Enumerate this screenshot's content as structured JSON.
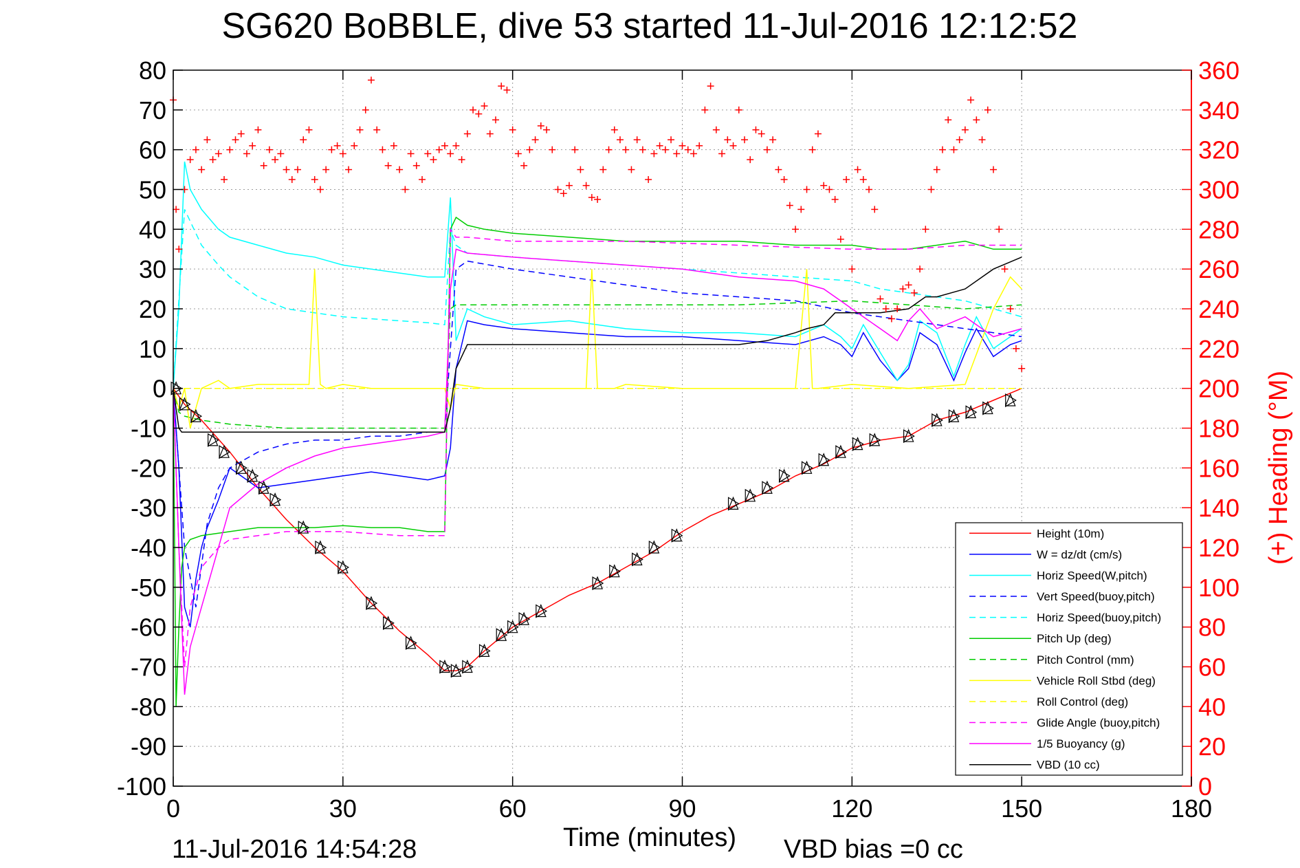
{
  "figure": {
    "title": "SG620 BoBBLE, dive 53 started 11-Jul-2016 12:12:52",
    "xlabel": "Time (minutes)",
    "footer_date": "11-Jul-2016 14:54:28",
    "footer_bias": "VBD bias =0 cc"
  },
  "chart_data": {
    "type": "line",
    "title": "SG620 BoBBLE, dive 53 started 11-Jul-2016 12:12:52",
    "xlabel": "Time (minutes)",
    "ylabel": "",
    "y2label": "(+) Heading (°M)",
    "xlim": [
      0,
      180
    ],
    "ylim": [
      -100,
      80
    ],
    "y2lim": [
      0,
      360
    ],
    "xticks": [
      "0",
      "30",
      "60",
      "90",
      "120",
      "150",
      "180"
    ],
    "yticks": [
      "80",
      "70",
      "60",
      "50",
      "40",
      "30",
      "20",
      "10",
      "0",
      "-10",
      "-20",
      "-30",
      "-40",
      "-50",
      "-60",
      "-70",
      "-80",
      "-90",
      "-100"
    ],
    "y2ticks": [
      "360",
      "340",
      "320",
      "300",
      "280",
      "260",
      "240",
      "220",
      "200",
      "180",
      "160",
      "140",
      "120",
      "100",
      "80",
      "60",
      "40",
      "20",
      "0"
    ],
    "grid": true,
    "legend_position": "bottom-right",
    "colors": {
      "red": "#ff0000",
      "blue": "#0000ff",
      "cyan": "#00ffff",
      "green": "#00cc00",
      "yellow": "#ffff00",
      "magenta": "#ff00ff",
      "black": "#000000"
    },
    "series": [
      {
        "name": "Height (10m)",
        "color": "#ff0000",
        "dash": "solid",
        "x": [
          0,
          2,
          5,
          10,
          15,
          20,
          25,
          30,
          35,
          40,
          45,
          48,
          50,
          52,
          55,
          60,
          65,
          70,
          75,
          80,
          85,
          90,
          95,
          100,
          105,
          110,
          115,
          120,
          125,
          130,
          135,
          140,
          145,
          150
        ],
        "y": [
          0,
          -4,
          -8,
          -16,
          -25,
          -33,
          -40,
          -46,
          -54,
          -61,
          -67,
          -71,
          -71,
          -70,
          -66,
          -60,
          -56,
          -52,
          -49,
          -45,
          -41,
          -36,
          -32,
          -29,
          -26,
          -22,
          -19,
          -15,
          -13,
          -12,
          -8,
          -6,
          -3,
          0
        ]
      },
      {
        "name": "W = dz/dt (cm/s)",
        "color": "#0000ff",
        "dash": "solid",
        "x": [
          0,
          1,
          2,
          3,
          4,
          5,
          6,
          8,
          10,
          12,
          15,
          20,
          25,
          30,
          35,
          40,
          45,
          48,
          49,
          50,
          52,
          55,
          60,
          70,
          80,
          90,
          100,
          110,
          115,
          118,
          120,
          122,
          125,
          128,
          130,
          132,
          135,
          138,
          140,
          142,
          145,
          148,
          150
        ],
        "y": [
          0,
          -20,
          -55,
          -60,
          -48,
          -40,
          -35,
          -28,
          -20,
          -22,
          -25,
          -24,
          -23,
          -22,
          -21,
          -22,
          -23,
          -22,
          -15,
          5,
          17,
          16,
          15,
          14,
          13,
          13,
          12,
          11,
          13,
          11,
          8,
          14,
          7,
          2,
          5,
          14,
          11,
          2,
          9,
          15,
          8,
          11,
          12
        ]
      },
      {
        "name": "Horiz Speed(W,pitch)",
        "color": "#00ffff",
        "dash": "solid",
        "x": [
          0,
          1,
          2,
          3,
          5,
          8,
          10,
          15,
          20,
          25,
          30,
          35,
          40,
          45,
          48,
          49,
          50,
          52,
          55,
          60,
          70,
          80,
          90,
          100,
          110,
          115,
          118,
          120,
          122,
          125,
          128,
          130,
          132,
          135,
          138,
          140,
          142,
          145,
          148,
          150
        ],
        "y": [
          0,
          20,
          57,
          50,
          45,
          40,
          38,
          36,
          34,
          33,
          31,
          30,
          29,
          28,
          28,
          48,
          12,
          20,
          18,
          16,
          17,
          15,
          14,
          14,
          13,
          16,
          13,
          10,
          16,
          9,
          2,
          6,
          17,
          14,
          3,
          11,
          18,
          10,
          13,
          15
        ]
      },
      {
        "name": "Vert Speed(buoy,pitch)",
        "color": "#0000ff",
        "dash": "dashed",
        "x": [
          0,
          2,
          4,
          6,
          8,
          10,
          15,
          20,
          25,
          30,
          35,
          40,
          45,
          48,
          49,
          50,
          52,
          60,
          70,
          80,
          90,
          100,
          110,
          120,
          125,
          130,
          135,
          140,
          145,
          150
        ],
        "y": [
          0,
          -40,
          -55,
          -34,
          -25,
          -20,
          -16,
          -14,
          -13,
          -13,
          -12,
          -12,
          -11,
          -11,
          10,
          30,
          32,
          30,
          28,
          26,
          24,
          23,
          22,
          19,
          18,
          17,
          16,
          15,
          14,
          13
        ]
      },
      {
        "name": "Horiz Speed(buoy,pitch)",
        "color": "#00ffff",
        "dash": "dashed",
        "x": [
          0,
          2,
          3,
          5,
          8,
          10,
          15,
          20,
          25,
          30,
          35,
          40,
          45,
          48,
          49,
          50,
          52,
          60,
          70,
          80,
          90,
          100,
          110,
          120,
          125,
          130,
          135,
          140,
          145,
          150
        ],
        "y": [
          0,
          45,
          42,
          36,
          31,
          28,
          23,
          20,
          19,
          18,
          17.5,
          17,
          16.5,
          16,
          40,
          36,
          34,
          33,
          32,
          31,
          30,
          29,
          28,
          27,
          25,
          24,
          23,
          22,
          20,
          18
        ]
      },
      {
        "name": "Pitch Up (deg)",
        "color": "#00cc00",
        "dash": "solid",
        "x": [
          0,
          0.5,
          1,
          1.5,
          2,
          3,
          5,
          10,
          15,
          20,
          25,
          30,
          35,
          40,
          45,
          48,
          49,
          50,
          52,
          55,
          60,
          70,
          80,
          90,
          100,
          110,
          120,
          125,
          130,
          135,
          140,
          145,
          150
        ],
        "y": [
          0,
          -80,
          -60,
          -45,
          -40,
          -38,
          -37,
          -36,
          -35,
          -35,
          -35,
          -34.5,
          -35,
          -35,
          -36,
          -36,
          40,
          43,
          41,
          40,
          39,
          38,
          37,
          37,
          37,
          36,
          36,
          35,
          35,
          36,
          37,
          35,
          35
        ]
      },
      {
        "name": "Pitch Control (mm)",
        "color": "#00cc00",
        "dash": "dashed",
        "x": [
          0,
          1,
          2,
          5,
          10,
          20,
          30,
          40,
          48,
          49,
          50,
          60,
          80,
          100,
          120,
          130,
          140,
          150
        ],
        "y": [
          0,
          -6,
          -7,
          -8,
          -9,
          -10,
          -10,
          -10,
          -10,
          20,
          21,
          21,
          21,
          21,
          22,
          21,
          20,
          21
        ]
      },
      {
        "name": "Vehicle Roll Stbd (deg)",
        "color": "#ffff00",
        "dash": "solid",
        "x": [
          0,
          1,
          2,
          3,
          5,
          8,
          10,
          15,
          20,
          24,
          25,
          26,
          27,
          30,
          35,
          40,
          45,
          48,
          49,
          50,
          55,
          60,
          70,
          73,
          74,
          75,
          78,
          80,
          90,
          100,
          110,
          112,
          113,
          114,
          120,
          130,
          140,
          145,
          148,
          150
        ],
        "y": [
          0,
          -5,
          0,
          -10,
          0,
          2,
          0,
          1,
          1,
          1,
          30,
          1,
          0,
          1,
          0,
          0,
          0,
          0,
          -5,
          1,
          0,
          0,
          0,
          0,
          30,
          0,
          0,
          1,
          0,
          0,
          0,
          30,
          0,
          0,
          1,
          0,
          1,
          20,
          28,
          25
        ]
      },
      {
        "name": "Roll Control (deg)",
        "color": "#ffff00",
        "dash": "dashed",
        "x": [
          0,
          5,
          10,
          15,
          20,
          30,
          40,
          48,
          50,
          60,
          80,
          100,
          120,
          140,
          150
        ],
        "y": [
          0,
          0,
          0,
          0,
          0,
          0,
          0,
          0,
          0,
          0,
          0,
          0,
          0,
          0,
          0
        ]
      },
      {
        "name": "Glide Angle (buoy,pitch)",
        "color": "#ff00ff",
        "dash": "dashed",
        "x": [
          0,
          1,
          2,
          3,
          5,
          8,
          10,
          15,
          20,
          30,
          40,
          48,
          49,
          50,
          52,
          60,
          80,
          100,
          120,
          130,
          140,
          150
        ],
        "y": [
          0,
          -40,
          -70,
          -55,
          -45,
          -40,
          -38,
          -37,
          -36,
          -36,
          -37,
          -37,
          40,
          38,
          38,
          37,
          37,
          36,
          35,
          35,
          36,
          36
        ]
      },
      {
        "name": "1/5 Buoyancy (g)",
        "color": "#ff00ff",
        "dash": "solid",
        "x": [
          0,
          1,
          2,
          3,
          5,
          8,
          10,
          15,
          20,
          25,
          30,
          35,
          40,
          45,
          48,
          49,
          50,
          52,
          60,
          70,
          80,
          90,
          100,
          110,
          115,
          118,
          120,
          122,
          125,
          128,
          130,
          132,
          135,
          140,
          145,
          150
        ],
        "y": [
          0,
          -40,
          -77,
          -65,
          -55,
          -40,
          -30,
          -24,
          -20,
          -17,
          -15,
          -14,
          -13,
          -12,
          -11,
          25,
          35,
          34,
          33,
          32,
          31,
          30,
          28,
          27,
          25,
          22,
          20,
          18,
          15,
          12,
          17,
          20,
          15,
          18,
          13,
          15
        ]
      },
      {
        "name": "VBD (10 cc)",
        "color": "#000000",
        "dash": "solid",
        "x": [
          0,
          1,
          1.5,
          48,
          49,
          50,
          52,
          60,
          70,
          80,
          90,
          100,
          105,
          110,
          112,
          115,
          117,
          120,
          125,
          130,
          133,
          135,
          140,
          145,
          150
        ],
        "y": [
          0,
          -10,
          -11,
          -11,
          -5,
          5,
          11,
          11,
          11,
          11,
          11,
          11,
          12,
          14,
          15,
          16,
          19,
          19,
          19,
          20,
          23,
          23,
          25,
          30,
          33
        ]
      }
    ],
    "heading": {
      "name": "(+) Heading (°M)",
      "color": "#ff0000",
      "marker": "+",
      "x": [
        0,
        0.5,
        1,
        2,
        3,
        4,
        5,
        6,
        7,
        8,
        9,
        10,
        11,
        12,
        13,
        14,
        15,
        16,
        17,
        18,
        19,
        20,
        21,
        22,
        23,
        24,
        25,
        26,
        27,
        28,
        29,
        30,
        31,
        32,
        33,
        34,
        35,
        36,
        37,
        38,
        39,
        40,
        41,
        42,
        43,
        44,
        45,
        46,
        47,
        48,
        49,
        50,
        51,
        52,
        53,
        54,
        55,
        56,
        57,
        58,
        59,
        60,
        61,
        62,
        63,
        64,
        65,
        66,
        67,
        68,
        69,
        70,
        71,
        72,
        73,
        74,
        75,
        76,
        77,
        78,
        79,
        80,
        81,
        82,
        83,
        84,
        85,
        86,
        87,
        88,
        89,
        90,
        91,
        92,
        93,
        94,
        95,
        96,
        97,
        98,
        99,
        100,
        101,
        102,
        103,
        104,
        105,
        106,
        107,
        108,
        109,
        110,
        111,
        112,
        113,
        114,
        115,
        116,
        117,
        118,
        119,
        120,
        121,
        122,
        123,
        124,
        125,
        126,
        127,
        128,
        129,
        130,
        131,
        132,
        133,
        134,
        135,
        136,
        137,
        138,
        139,
        140,
        141,
        142,
        143,
        144,
        145,
        146,
        147,
        148,
        149,
        150
      ],
      "y": [
        345,
        290,
        270,
        300,
        315,
        320,
        310,
        325,
        315,
        318,
        305,
        320,
        325,
        328,
        318,
        322,
        330,
        312,
        320,
        315,
        318,
        310,
        305,
        310,
        325,
        330,
        305,
        300,
        310,
        320,
        322,
        318,
        310,
        322,
        330,
        340,
        355,
        330,
        320,
        312,
        322,
        310,
        300,
        318,
        312,
        305,
        318,
        315,
        320,
        322,
        318,
        322,
        315,
        328,
        340,
        338,
        342,
        328,
        335,
        352,
        350,
        330,
        318,
        312,
        320,
        325,
        332,
        330,
        320,
        300,
        298,
        302,
        320,
        310,
        302,
        296,
        295,
        310,
        320,
        330,
        325,
        320,
        310,
        325,
        320,
        305,
        318,
        322,
        320,
        325,
        318,
        322,
        320,
        318,
        322,
        340,
        352,
        330,
        318,
        325,
        322,
        340,
        325,
        315,
        330,
        328,
        320,
        325,
        310,
        305,
        292,
        280,
        290,
        300,
        320,
        328,
        302,
        300,
        295,
        275,
        305,
        260,
        310,
        305,
        300,
        290,
        245,
        240,
        235,
        240,
        250,
        252,
        248,
        260,
        280,
        300,
        310,
        320,
        335,
        320,
        325,
        330,
        345,
        335,
        325,
        340,
        310,
        280,
        260,
        240,
        220,
        210
      ]
    },
    "triangles": {
      "color": "#000000",
      "x": [
        0.5,
        2,
        4,
        7,
        9,
        12,
        14,
        16,
        18,
        23,
        26,
        30,
        35,
        38,
        42,
        48,
        50,
        52,
        55,
        58,
        60,
        62,
        65,
        75,
        78,
        82,
        85,
        89,
        99,
        102,
        105,
        108,
        112,
        115,
        118,
        121,
        124,
        130,
        135,
        138,
        141,
        144,
        148
      ],
      "y": [
        0,
        -4,
        -7,
        -13,
        -16,
        -20,
        -22,
        -25,
        -28,
        -35,
        -40,
        -45,
        -54,
        -59,
        -64,
        -70,
        -71,
        -70,
        -66,
        -62,
        -60,
        -58,
        -56,
        -49,
        -46,
        -43,
        -40,
        -37,
        -29,
        -27,
        -25,
        -22,
        -20,
        -18,
        -16,
        -14,
        -13,
        -12,
        -8,
        -7,
        -6,
        -5,
        -3
      ]
    }
  }
}
